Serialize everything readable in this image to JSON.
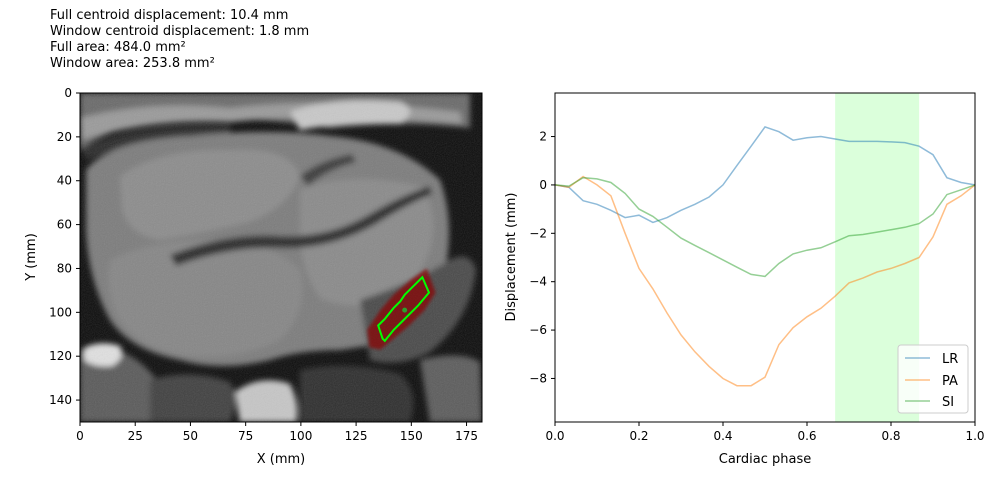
{
  "stats": [
    "Full centroid displacement: 10.4 mm",
    "Window centroid displacement: 1.8 mm",
    "Full area: 484.0 mm²",
    "Window area: 253.8 mm²"
  ],
  "colors": {
    "lr": "#1f77b4",
    "pa": "#ff7f0e",
    "si": "#2ca02c",
    "window": "#ccffcc",
    "contour": "#00ff00",
    "mask": "#8b0000"
  },
  "chart_data": [
    {
      "type": "image",
      "xlabel": "X (mm)",
      "ylabel": "Y (mm)",
      "xlim": [
        0,
        182
      ],
      "ylim": [
        150,
        0
      ],
      "xticks": [
        0,
        25,
        50,
        75,
        100,
        125,
        150,
        175
      ],
      "yticks": [
        0,
        20,
        40,
        60,
        80,
        100,
        120,
        140
      ],
      "contour": [
        [
          135,
          106
        ],
        [
          138,
          103
        ],
        [
          142,
          98
        ],
        [
          145,
          95
        ],
        [
          147,
          92
        ],
        [
          150,
          89
        ],
        [
          153,
          86
        ],
        [
          155,
          84
        ],
        [
          158,
          91
        ],
        [
          153,
          97
        ],
        [
          150,
          100
        ],
        [
          146,
          104
        ],
        [
          142,
          108
        ],
        [
          138,
          113
        ],
        [
          137,
          112
        ]
      ],
      "centroid": [
        147,
        99
      ],
      "mask": [
        [
          130,
          108
        ],
        [
          136,
          99
        ],
        [
          142,
          92
        ],
        [
          150,
          85
        ],
        [
          157,
          80
        ],
        [
          161,
          91
        ],
        [
          156,
          99
        ],
        [
          149,
          106
        ],
        [
          142,
          112
        ],
        [
          136,
          117
        ],
        [
          131,
          116
        ]
      ]
    },
    {
      "type": "line",
      "xlabel": "Cardiac phase",
      "ylabel": "Displacement (mm)",
      "xlim": [
        0,
        1
      ],
      "ylim": [
        -9.8,
        3.8
      ],
      "xticks": [
        0.0,
        0.2,
        0.4,
        0.6,
        0.8,
        1.0
      ],
      "yticks": [
        -8,
        -6,
        -4,
        -2,
        0,
        2
      ],
      "legend": "lower-right",
      "window": [
        0.667,
        0.867
      ],
      "x": [
        0,
        0.033,
        0.067,
        0.1,
        0.133,
        0.167,
        0.2,
        0.233,
        0.267,
        0.3,
        0.333,
        0.367,
        0.4,
        0.433,
        0.467,
        0.5,
        0.533,
        0.567,
        0.6,
        0.633,
        0.667,
        0.7,
        0.733,
        0.767,
        0.8,
        0.833,
        0.867,
        0.9,
        0.933,
        0.967,
        1.0
      ],
      "series": [
        {
          "name": "LR",
          "values": [
            0,
            -0.1,
            -0.65,
            -0.8,
            -1.05,
            -1.35,
            -1.25,
            -1.55,
            -1.35,
            -1.05,
            -0.8,
            -0.5,
            0.0,
            0.8,
            1.6,
            2.4,
            2.2,
            1.85,
            1.95,
            2.0,
            1.9,
            1.8,
            1.8,
            1.8,
            1.78,
            1.75,
            1.6,
            1.25,
            0.3,
            0.1,
            0
          ]
        },
        {
          "name": "PA",
          "values": [
            0,
            -0.1,
            0.35,
            0.0,
            -0.45,
            -2.0,
            -3.45,
            -4.3,
            -5.3,
            -6.2,
            -6.9,
            -7.5,
            -8.0,
            -8.3,
            -8.3,
            -7.95,
            -6.6,
            -5.9,
            -5.45,
            -5.1,
            -4.6,
            -4.05,
            -3.85,
            -3.6,
            -3.45,
            -3.25,
            -3.0,
            -2.15,
            -0.8,
            -0.45,
            0
          ]
        },
        {
          "name": "SI",
          "values": [
            0,
            -0.05,
            0.3,
            0.25,
            0.1,
            -0.35,
            -1.0,
            -1.3,
            -1.75,
            -2.2,
            -2.5,
            -2.8,
            -3.1,
            -3.4,
            -3.7,
            -3.78,
            -3.25,
            -2.85,
            -2.7,
            -2.6,
            -2.35,
            -2.1,
            -2.05,
            -1.95,
            -1.85,
            -1.75,
            -1.6,
            -1.2,
            -0.4,
            -0.2,
            0
          ]
        }
      ]
    }
  ]
}
